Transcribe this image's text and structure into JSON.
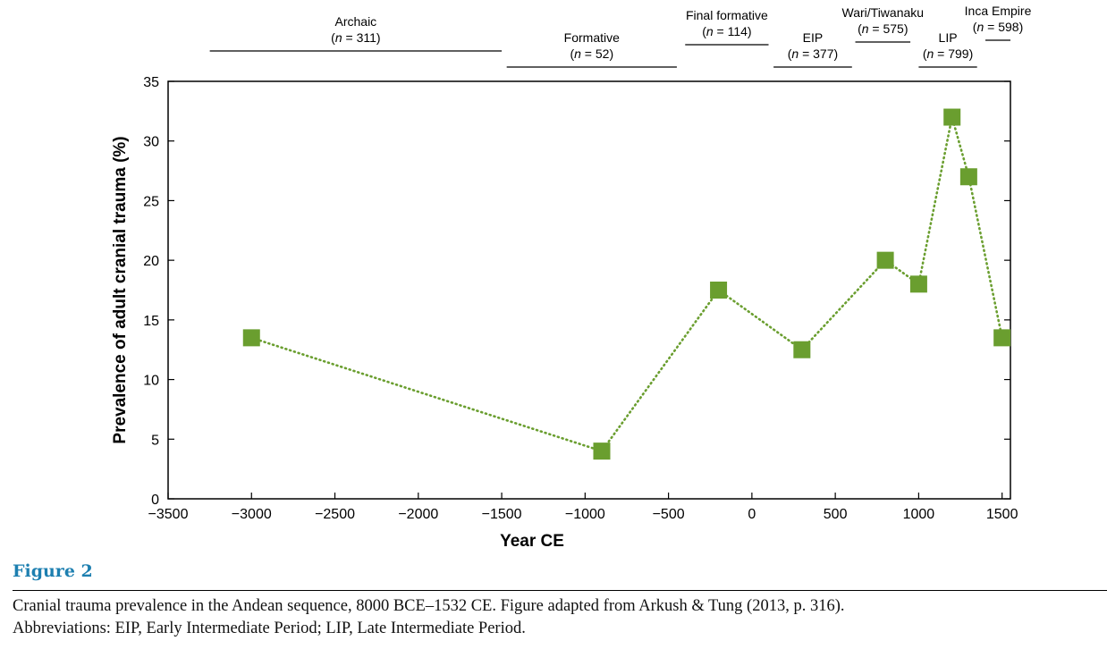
{
  "chart_data": {
    "type": "line",
    "xlabel": "Year CE",
    "ylabel": "Prevalence of adult cranial trauma (%)",
    "xlim": [
      -3500,
      1550
    ],
    "ylim": [
      0,
      35
    ],
    "xticks": [
      -3500,
      -3000,
      -2500,
      -2000,
      -1500,
      -1000,
      -500,
      0,
      500,
      1000,
      1500
    ],
    "xtick_labels": [
      "−3500",
      "−3000",
      "−2500",
      "−2000",
      "−1500",
      "−1000",
      "−500",
      "0",
      "500",
      "1000",
      "1500"
    ],
    "yticks": [
      0,
      5,
      10,
      15,
      20,
      25,
      30,
      35
    ],
    "ytick_labels": [
      "0",
      "5",
      "10",
      "15",
      "20",
      "25",
      "30",
      "35"
    ],
    "grid": false,
    "series": [
      {
        "color": "#6a9e2f",
        "line_style": "dotted",
        "marker": "square",
        "points": [
          {
            "x": -3000,
            "y": 13.5
          },
          {
            "x": -900,
            "y": 4.0
          },
          {
            "x": -200,
            "y": 17.5
          },
          {
            "x": 300,
            "y": 12.5
          },
          {
            "x": 800,
            "y": 20.0
          },
          {
            "x": 1000,
            "y": 18.0
          },
          {
            "x": 1200,
            "y": 32.0
          },
          {
            "x": 1300,
            "y": 27.0
          },
          {
            "x": 1500,
            "y": 13.5
          }
        ]
      }
    ],
    "periods": [
      {
        "name": "Archaic",
        "n": "311",
        "x_start": -3250,
        "x_end": -1500
      },
      {
        "name": "Formative",
        "n": "52",
        "x_start": -1470,
        "x_end": -450
      },
      {
        "name": "Final formative",
        "n": "114",
        "x_start": -400,
        "x_end": 100
      },
      {
        "name": "EIP",
        "n": "377",
        "x_start": 130,
        "x_end": 600
      },
      {
        "name": "Wari/Tiwanaku",
        "n": "575",
        "x_start": 620,
        "x_end": 950
      },
      {
        "name": "LIP",
        "n": "799",
        "x_start": 1000,
        "x_end": 1350
      },
      {
        "name": "Inca Empire",
        "n": "598",
        "x_start": 1400,
        "x_end": 1550
      }
    ]
  },
  "caption": {
    "label": "Figure 2",
    "line1": "Cranial trauma prevalence in the Andean sequence, 8000 BCE–1532 CE. Figure adapted from Arkush & Tung (2013, p. 316).",
    "line2": "Abbreviations: EIP, Early Intermediate Period; LIP, Late Intermediate Period."
  },
  "colors": {
    "marker": "#6a9e2f",
    "caption_label": "#1d7fb0"
  }
}
